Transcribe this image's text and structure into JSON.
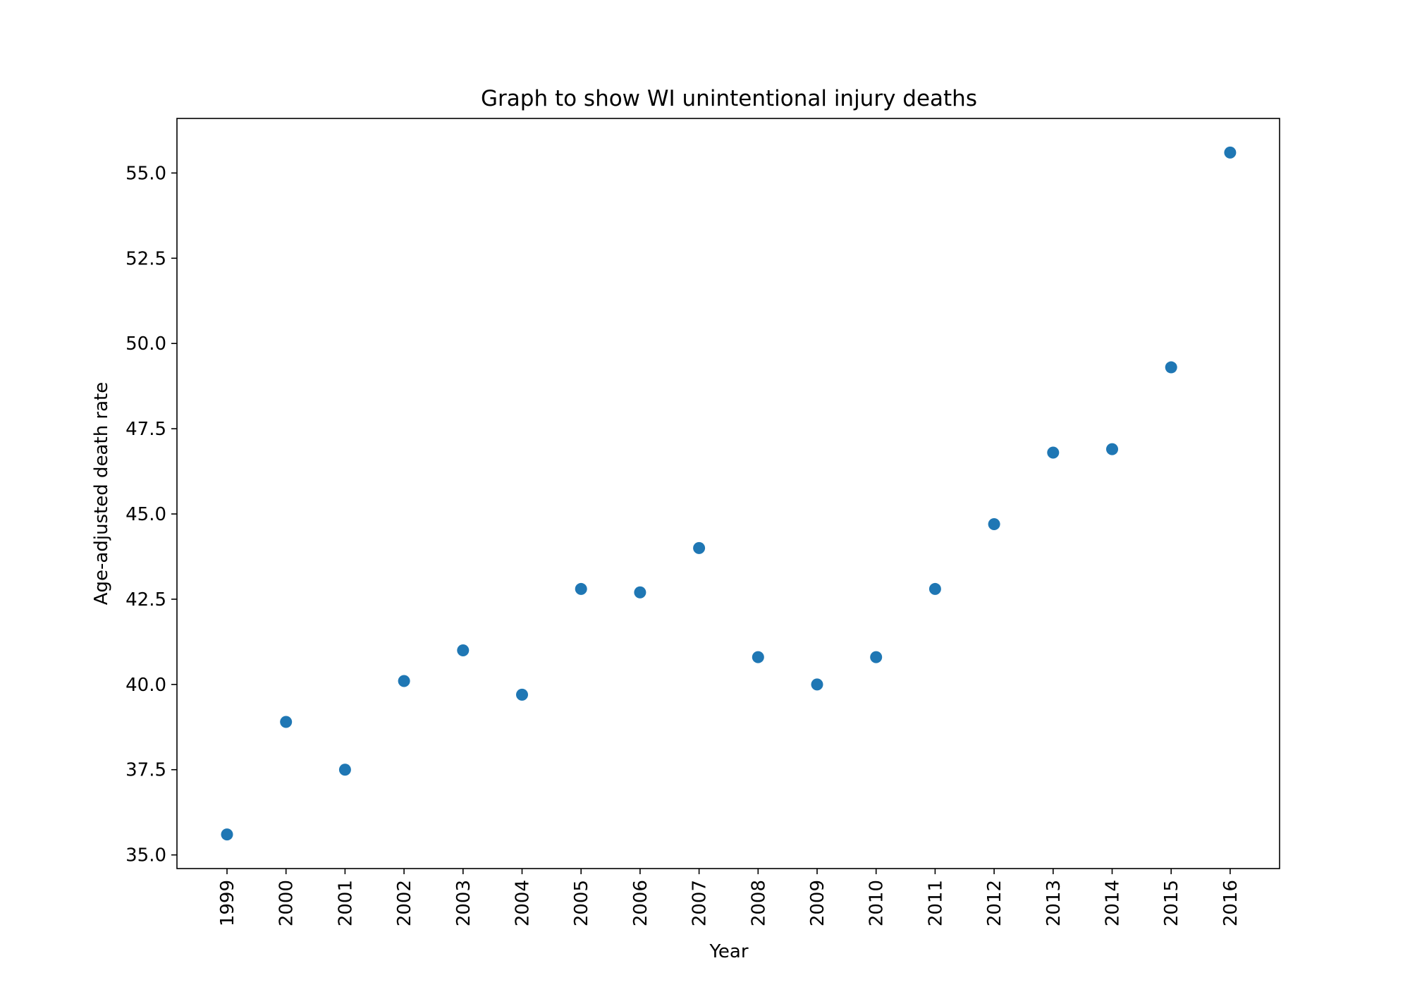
{
  "chart_data": {
    "type": "scatter",
    "title": "Graph to show WI unintentional injury deaths",
    "xlabel": "Year",
    "ylabel": "Age-adjusted death rate",
    "x": [
      "1999",
      "2000",
      "2001",
      "2002",
      "2003",
      "2004",
      "2005",
      "2006",
      "2007",
      "2008",
      "2009",
      "2010",
      "2011",
      "2012",
      "2013",
      "2014",
      "2015",
      "2016"
    ],
    "y": [
      35.6,
      38.9,
      37.5,
      40.1,
      41.0,
      39.7,
      42.8,
      42.7,
      44.0,
      40.8,
      40.0,
      40.8,
      42.8,
      44.7,
      46.8,
      46.9,
      49.3,
      55.6
    ],
    "yticks": [
      "35.0",
      "37.5",
      "40.0",
      "42.5",
      "45.0",
      "47.5",
      "50.0",
      "52.5",
      "55.0"
    ],
    "ylim": [
      34.6,
      56.6
    ],
    "grid": false,
    "legend": "none",
    "marker_color": "#1f77b4"
  }
}
